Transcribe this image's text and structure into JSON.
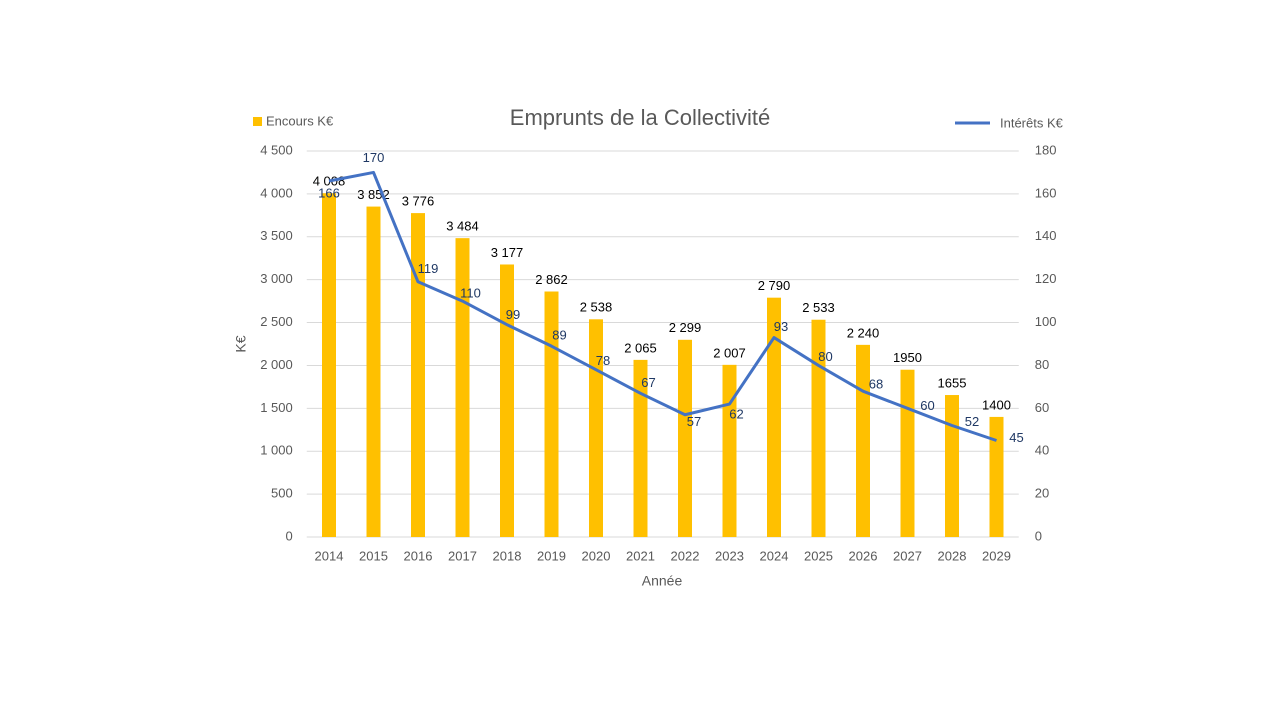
{
  "chart_data": {
    "type": "bar-line",
    "title": "Emprunts de la Collectivité",
    "x_label": "Année",
    "y_label": "K€",
    "categories": [
      "2014",
      "2015",
      "2016",
      "2017",
      "2018",
      "2019",
      "2020",
      "2021",
      "2022",
      "2023",
      "2024",
      "2025",
      "2026",
      "2027",
      "2028",
      "2029"
    ],
    "series": [
      {
        "name": "Encours K€",
        "type": "bar",
        "color": "#ffc000",
        "values": [
          4008,
          3852,
          3776,
          3484,
          3177,
          2862,
          2538,
          2065,
          2299,
          2007,
          2790,
          2533,
          2240,
          1950,
          1655,
          1400
        ],
        "value_labels": [
          "4 008",
          "3 852",
          "3 776",
          "3 484",
          "3 177",
          "2 862",
          "2 538",
          "2 065",
          "2 299",
          "2 007",
          "2 790",
          "2 533",
          "2 240",
          "1950",
          "1655",
          "1400"
        ]
      },
      {
        "name": "Intérêts K€",
        "type": "line",
        "axis": "y2",
        "color": "#4472c4",
        "values": [
          166,
          170,
          119,
          110,
          99,
          89,
          78,
          67,
          57,
          62,
          93,
          80,
          68,
          60,
          52,
          45
        ]
      }
    ],
    "ylim": [
      0,
      4500
    ],
    "yticks": [
      0,
      500,
      {
        "value": 1000,
        "label": "1 000"
      },
      {
        "value": 1500,
        "label": "1 500"
      },
      {
        "value": 2000,
        "label": "2 000"
      },
      {
        "value": 2500,
        "label": "2 500"
      },
      {
        "value": 3000,
        "label": "3 000"
      },
      {
        "value": 3500,
        "label": "3 500"
      },
      {
        "value": 4000,
        "label": "4 000"
      },
      {
        "value": 4500,
        "label": "4 500"
      }
    ],
    "y2lim": [
      0,
      180
    ],
    "y2ticks": [
      0,
      20,
      40,
      60,
      80,
      100,
      120,
      140,
      160,
      180
    ],
    "grid": true
  }
}
